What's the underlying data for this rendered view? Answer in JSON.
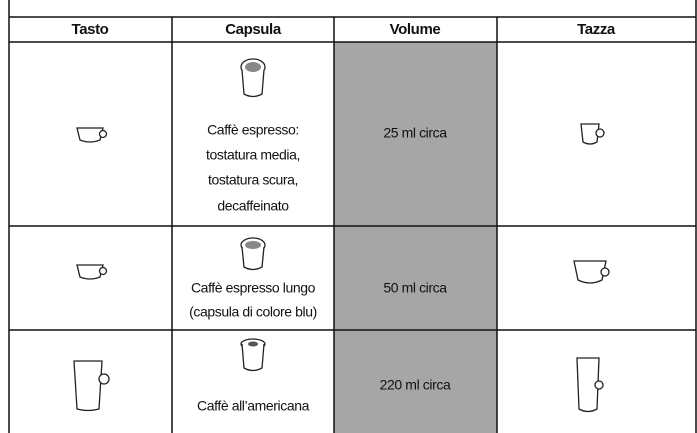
{
  "table": {
    "header": [
      "Tasto",
      "Capsula",
      "Volume",
      "Tazza"
    ],
    "rows": [
      {
        "capsula": [
          "Caffè espresso:",
          "tostatura media,",
          "tostatura scura,",
          "decaffeinato"
        ],
        "volume": "25 ml circa"
      },
      {
        "capsula": [
          "Caffè espresso lungo",
          "(capsula di colore blu)"
        ],
        "volume": "50 ml circa"
      },
      {
        "capsula": [
          "Caffè all’americana"
        ],
        "volume": "220 ml circa"
      }
    ]
  }
}
